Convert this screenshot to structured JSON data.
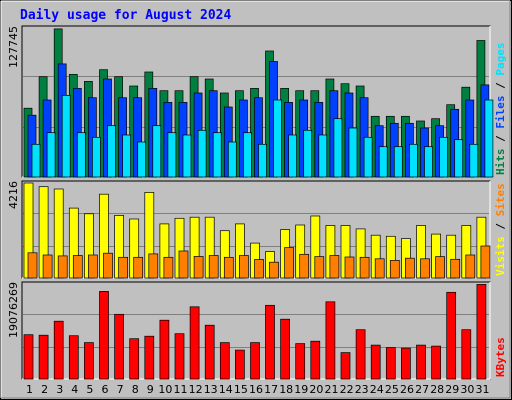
{
  "chart_data": {
    "type": "bar",
    "title": "Daily usage for August 2024",
    "categories": [
      "1",
      "2",
      "3",
      "4",
      "5",
      "6",
      "7",
      "8",
      "9",
      "10",
      "11",
      "12",
      "13",
      "14",
      "15",
      "16",
      "17",
      "18",
      "19",
      "20",
      "21",
      "22",
      "23",
      "24",
      "25",
      "26",
      "27",
      "28",
      "29",
      "30",
      "31"
    ],
    "weekend_days": [
      "3",
      "4",
      "10",
      "11",
      "17",
      "18",
      "24",
      "25",
      "31"
    ],
    "colors": {
      "hits": "#008040",
      "files": "#0040ff",
      "pages": "#00e0ff",
      "visits": "#ffff00",
      "sites": "#ff8000",
      "kbytes": "#ff0000",
      "title": "#0000ff",
      "weekend_label": "#008040",
      "background": "#c0c0c0",
      "grid": "#808080"
    },
    "panels": [
      {
        "id": "hits-files-pages",
        "max_label": "127745",
        "ymax": 127745,
        "series": [
          {
            "name": "Hits",
            "color": "#008040",
            "values": [
              59000,
              86000,
              127000,
              88000,
              82000,
              92000,
              86000,
              78000,
              90000,
              74000,
              74000,
              86000,
              84000,
              72000,
              74000,
              76000,
              108000,
              76000,
              74000,
              74000,
              84000,
              80000,
              78000,
              52000,
              52000,
              52000,
              48000,
              50000,
              62000,
              77000,
              117000
            ]
          },
          {
            "name": "Files",
            "color": "#0040ff",
            "values": [
              53000,
              66000,
              97000,
              76000,
              68000,
              84000,
              68000,
              68000,
              76000,
              64000,
              64000,
              72000,
              74000,
              60000,
              66000,
              68000,
              99000,
              64000,
              66000,
              64000,
              74000,
              72000,
              68000,
              44000,
              46000,
              46000,
              42000,
              44000,
              58000,
              66000,
              79000
            ]
          },
          {
            "name": "Pages",
            "color": "#00e0ff",
            "values": [
              28000,
              38000,
              70000,
              38000,
              34000,
              44000,
              36000,
              30000,
              44000,
              38000,
              36000,
              40000,
              38000,
              30000,
              38000,
              28000,
              66000,
              36000,
              40000,
              36000,
              50000,
              42000,
              34000,
              26000,
              26000,
              28000,
              26000,
              34000,
              32000,
              28000,
              66000
            ]
          }
        ]
      },
      {
        "id": "visits-sites",
        "max_label": "4216",
        "ymax": 4216,
        "series": [
          {
            "name": "Visits",
            "color": "#ffff00",
            "values": [
              4216,
              4050,
              3950,
              3100,
              2850,
              3720,
              2780,
              2620,
              3800,
              2400,
              2650,
              2700,
              2700,
              2100,
              2400,
              1550,
              1170,
              2150,
              2350,
              2750,
              2330,
              2330,
              2180,
              1900,
              1850,
              1750,
              2330,
              1950,
              1900,
              2330,
              2700
            ]
          },
          {
            "name": "Sites",
            "color": "#ff8000",
            "values": [
              1120,
              1020,
              980,
              1000,
              1020,
              1100,
              920,
              920,
              1070,
              920,
              1200,
              960,
              1000,
              920,
              1000,
              820,
              700,
              1350,
              1050,
              950,
              1000,
              930,
              920,
              850,
              780,
              880,
              850,
              950,
              830,
              1020,
              1420
            ]
          }
        ]
      },
      {
        "id": "kbytes",
        "max_label": "19076269",
        "ymax": 19076269,
        "series": [
          {
            "name": "KBytes",
            "color": "#ff0000",
            "values": [
              8900000,
              8800000,
              11600000,
              8700000,
              7300000,
              17600000,
              13000000,
              8100000,
              8600000,
              11800000,
              9100000,
              14500000,
              10800000,
              7300000,
              5800000,
              7300000,
              14800000,
              12000000,
              7100000,
              7600000,
              15500000,
              5300000,
              9900000,
              6800000,
              6300000,
              6200000,
              6800000,
              6600000,
              17400000,
              9900000,
              19000000
            ]
          }
        ]
      }
    ],
    "legend": {
      "top": [
        {
          "label": "Hits",
          "color": "#008040"
        },
        {
          "label": "Files",
          "color": "#0040ff"
        },
        {
          "label": "Pages",
          "color": "#00e0ff"
        }
      ],
      "middle": [
        {
          "label": "Visits",
          "color": "#ffff00"
        },
        {
          "label": "Sites",
          "color": "#ff8000"
        }
      ],
      "bottom": [
        {
          "label": "KBytes",
          "color": "#ff0000"
        }
      ]
    }
  }
}
